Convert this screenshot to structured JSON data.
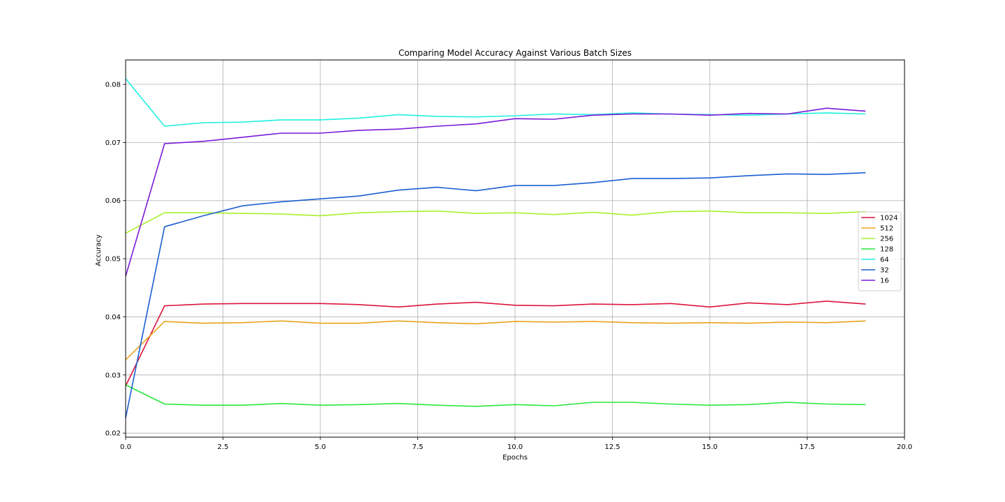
{
  "chart_data": {
    "type": "line",
    "title": "Comparing Model Accuracy Against Various Batch Sizes",
    "xlabel": "Epochs",
    "ylabel": "Accuracy",
    "xlim": [
      0,
      20
    ],
    "ylim": [
      0.0193,
      0.0842
    ],
    "grid": true,
    "legend_position": "center-right",
    "x_ticks": [
      "0.0",
      "2.5",
      "5.0",
      "7.5",
      "10.0",
      "12.5",
      "15.0",
      "17.5",
      "20.0"
    ],
    "y_ticks": [
      "0.02",
      "0.03",
      "0.04",
      "0.05",
      "0.06",
      "0.07",
      "0.08"
    ],
    "x": [
      0,
      1,
      2,
      3,
      4,
      5,
      6,
      7,
      8,
      9,
      10,
      11,
      12,
      13,
      14,
      15,
      16,
      17,
      18,
      19
    ],
    "series": [
      {
        "name": "1024",
        "color": "#dc143c",
        "values": [
          0.0281,
          0.0419,
          0.0422,
          0.0423,
          0.0423,
          0.0423,
          0.0421,
          0.0417,
          0.0422,
          0.0425,
          0.042,
          0.0419,
          0.0422,
          0.0421,
          0.0423,
          0.0417,
          0.0424,
          0.0421,
          0.0427,
          0.0422
        ]
      },
      {
        "name": "512",
        "color": "#e8a31c",
        "values": [
          0.0326,
          0.0392,
          0.0389,
          0.039,
          0.0393,
          0.0389,
          0.0389,
          0.0393,
          0.039,
          0.0388,
          0.0392,
          0.0391,
          0.0392,
          0.039,
          0.0389,
          0.039,
          0.0389,
          0.0391,
          0.039,
          0.0393
        ]
      },
      {
        "name": "256",
        "color": "#a8f02a",
        "values": [
          0.0544,
          0.0579,
          0.0579,
          0.0578,
          0.0577,
          0.0574,
          0.0579,
          0.0581,
          0.0582,
          0.0578,
          0.0579,
          0.0576,
          0.058,
          0.0575,
          0.0581,
          0.0582,
          0.0579,
          0.0579,
          0.0578,
          0.0581
        ]
      },
      {
        "name": "128",
        "color": "#28e83c",
        "values": [
          0.0283,
          0.025,
          0.0248,
          0.0248,
          0.0251,
          0.0248,
          0.0249,
          0.0251,
          0.0248,
          0.0246,
          0.0249,
          0.0247,
          0.0253,
          0.0253,
          0.025,
          0.0248,
          0.0249,
          0.0253,
          0.025,
          0.0249
        ]
      },
      {
        "name": "64",
        "color": "#20f0e0",
        "values": [
          0.081,
          0.0728,
          0.0734,
          0.0735,
          0.0739,
          0.0739,
          0.0742,
          0.0748,
          0.0745,
          0.0744,
          0.0746,
          0.0749,
          0.0748,
          0.0751,
          0.0749,
          0.0748,
          0.0747,
          0.0749,
          0.0751,
          0.0749
        ]
      },
      {
        "name": "32",
        "color": "#1a5fd0",
        "values": [
          0.0226,
          0.0555,
          0.0574,
          0.0591,
          0.0598,
          0.0603,
          0.0608,
          0.0618,
          0.0623,
          0.0617,
          0.0626,
          0.0626,
          0.0631,
          0.0638,
          0.0638,
          0.0639,
          0.0643,
          0.0646,
          0.0645,
          0.0648
        ]
      },
      {
        "name": "16",
        "color": "#7a1ad8",
        "values": [
          0.047,
          0.0698,
          0.0702,
          0.0709,
          0.0716,
          0.0716,
          0.0721,
          0.0723,
          0.0728,
          0.0732,
          0.0741,
          0.074,
          0.0747,
          0.0749,
          0.0749,
          0.0747,
          0.075,
          0.0749,
          0.0759,
          0.0754
        ]
      }
    ]
  }
}
